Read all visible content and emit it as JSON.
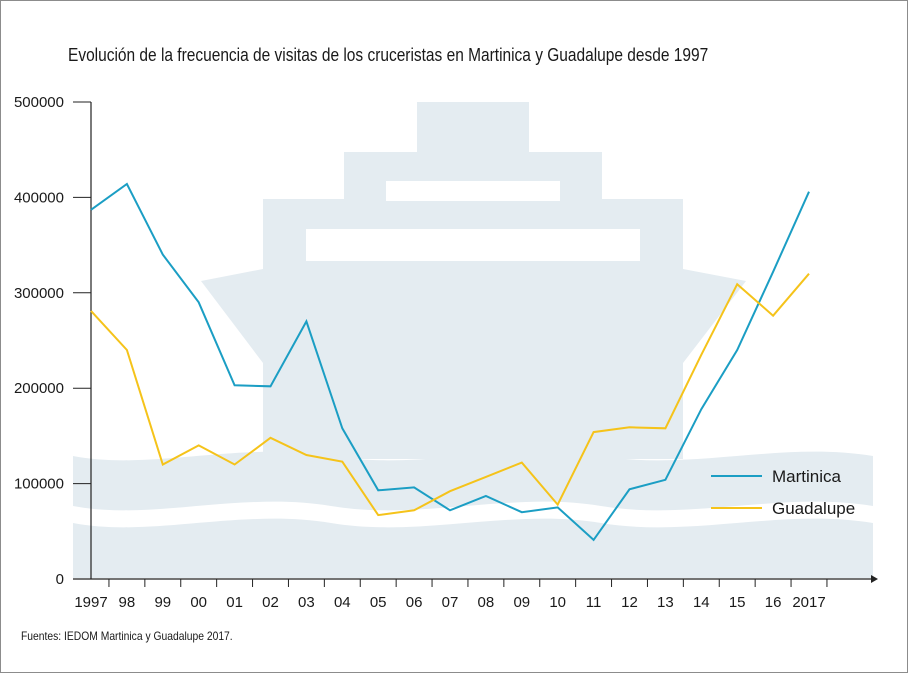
{
  "colors": {
    "martinica": "#1b9ec4",
    "guadalupe": "#f5c31a",
    "ship": "#e4ecf1",
    "waves": "#e4ecf1",
    "axis": "#222222"
  },
  "chart_data": {
    "type": "line",
    "title": "Evolución de la frecuencia de visitas de los cruceristas en Martinica y Guadalupe desde 1997",
    "xlabel": "",
    "ylabel": "",
    "categories": [
      "1997",
      "98",
      "99",
      "00",
      "01",
      "02",
      "03",
      "04",
      "05",
      "06",
      "07",
      "08",
      "09",
      "10",
      "11",
      "12",
      "13",
      "14",
      "15",
      "16",
      "2017"
    ],
    "ylim": [
      0,
      500000
    ],
    "yticks": [
      0,
      100000,
      200000,
      300000,
      400000,
      500000
    ],
    "ytick_labels": [
      "0",
      "100000",
      "200000",
      "300000",
      "400000",
      "500000"
    ],
    "grid": false,
    "legend_position": "right",
    "series": [
      {
        "name": "Martinica",
        "color_key": "martinica",
        "values": [
          387000,
          414000,
          340000,
          290000,
          203000,
          202000,
          270000,
          158000,
          93000,
          96000,
          72000,
          87000,
          70000,
          75000,
          41000,
          94000,
          104000,
          178000,
          240000,
          322000,
          406000
        ]
      },
      {
        "name": "Guadalupe",
        "color_key": "guadalupe",
        "values": [
          281000,
          240000,
          120000,
          140000,
          120000,
          148000,
          130000,
          123000,
          67000,
          72000,
          92000,
          107000,
          122000,
          78000,
          154000,
          159000,
          158000,
          235000,
          309000,
          276000,
          320000
        ]
      }
    ]
  },
  "source": "Fuentes: IEDOM Martinica y Guadalupe 2017."
}
